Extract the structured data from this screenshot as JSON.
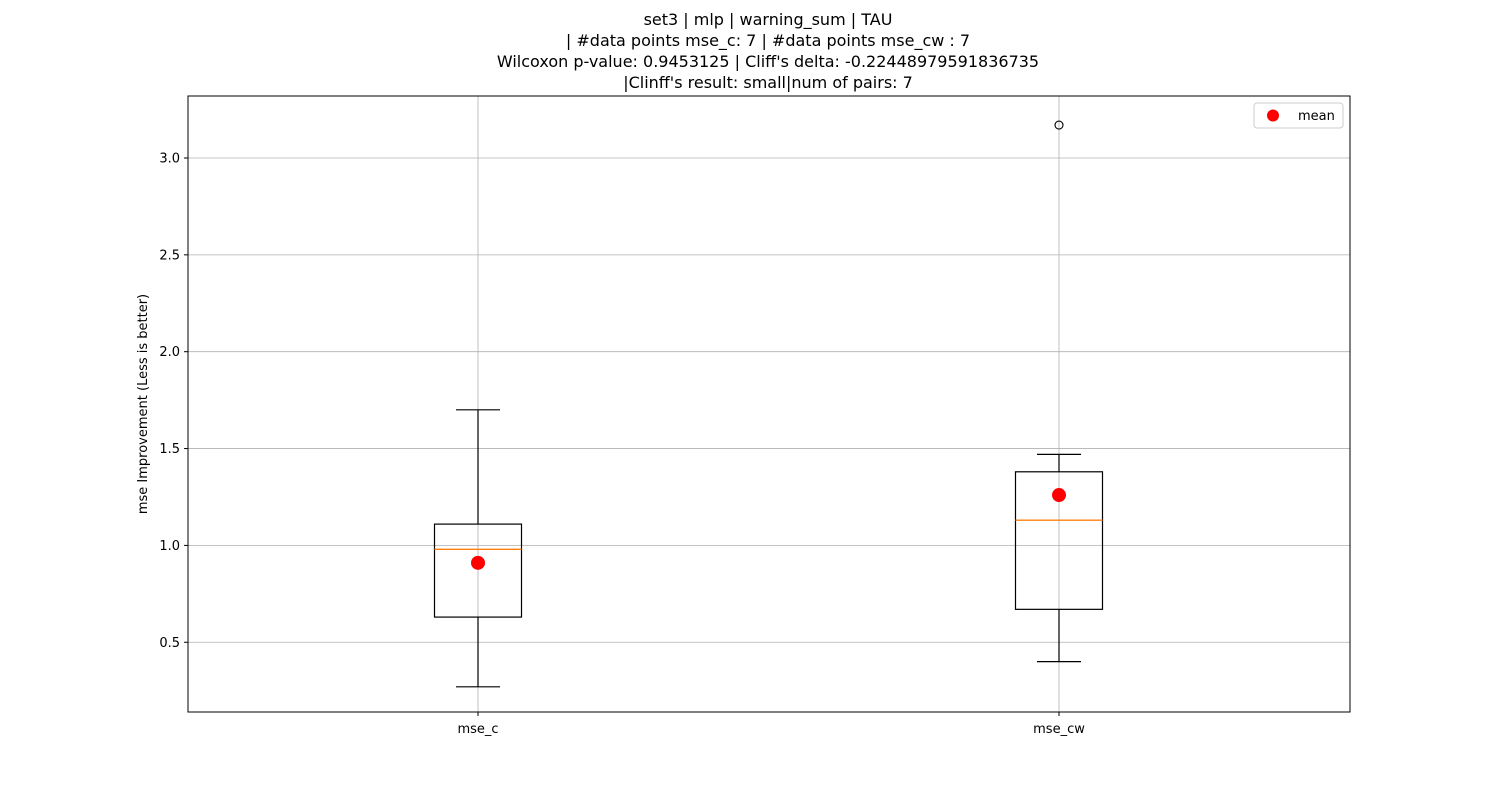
{
  "chart_data": {
    "type": "box",
    "title_lines": [
      "set3 | mlp | warning_sum | TAU",
      "| #data points mse_c: 7 | #data points mse_cw : 7",
      "Wilcoxon p-value: 0.9453125 | Cliff's delta: -0.22448979591836735",
      "|Clinff's result: small|num of pairs: 7"
    ],
    "ylabel": "mse Improvement (Less is better)",
    "xlabel": "",
    "categories": [
      "mse_c",
      "mse_cw"
    ],
    "ylim": [
      0.14,
      3.32
    ],
    "yticks": [
      0.5,
      1.0,
      1.5,
      2.0,
      2.5,
      3.0
    ],
    "ytick_labels": [
      "0.5",
      "1.0",
      "1.5",
      "2.0",
      "2.5",
      "3.0"
    ],
    "grid": true,
    "legend": {
      "position": "top-right",
      "entries": [
        "mean"
      ]
    },
    "boxes": [
      {
        "category": "mse_c",
        "whisker_low": 0.27,
        "q1": 0.63,
        "median": 0.98,
        "q3": 1.11,
        "whisker_high": 1.7,
        "mean": 0.91,
        "outliers": []
      },
      {
        "category": "mse_cw",
        "whisker_low": 0.4,
        "q1": 0.67,
        "median": 1.13,
        "q3": 1.38,
        "whisker_high": 1.47,
        "mean": 1.26,
        "outliers": [
          3.17
        ]
      }
    ],
    "colors": {
      "median": "#ff7f0e",
      "mean": "#ff0000",
      "box": "#000000",
      "grid": "#b0b0b0"
    }
  }
}
